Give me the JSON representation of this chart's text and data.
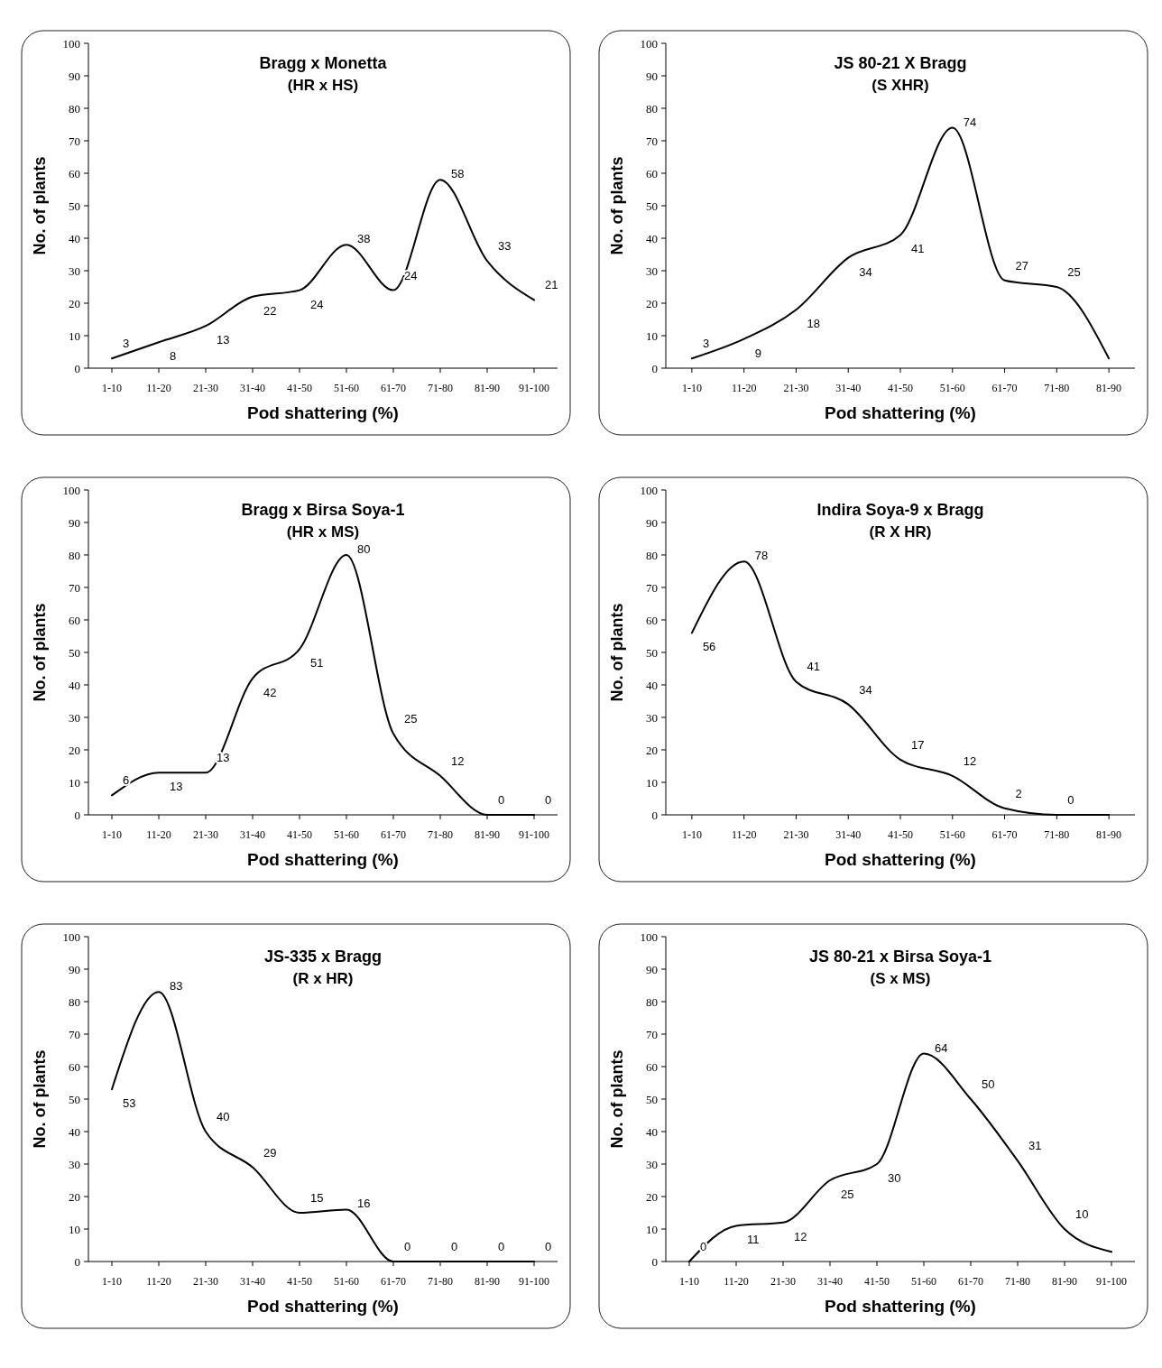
{
  "chart_data": [
    {
      "type": "line",
      "title": "Bragg x Monetta",
      "subtitle": "(HR x HS)",
      "xlabel": "Pod shattering (%)",
      "ylabel": "No. of plants",
      "categories": [
        "1-10",
        "11-20",
        "21-30",
        "31-40",
        "41-50",
        "51-60",
        "61-70",
        "71-80",
        "81-90",
        "91-100"
      ],
      "series": [
        {
          "color": "#000000",
          "values": [
            3,
            8,
            13,
            22,
            24,
            38,
            24,
            58,
            33,
            21
          ],
          "value_labels": [
            "3",
            "8",
            "13",
            "22",
            "24",
            "38",
            "24",
            "58",
            "33",
            "21"
          ]
        }
      ],
      "ylim": [
        0,
        100
      ],
      "yticks": [
        0,
        10,
        20,
        30,
        40,
        50,
        60,
        70,
        80,
        90,
        100
      ],
      "grid": false,
      "marker": "none",
      "line_style": "solid"
    },
    {
      "type": "line",
      "title": "JS 80-21 X Bragg",
      "subtitle": "(S XHR)",
      "xlabel": "Pod shattering (%)",
      "ylabel": "No. of plants",
      "categories": [
        "1-10",
        "11-20",
        "21-30",
        "31-40",
        "41-50",
        "51-60",
        "61-70",
        "71-80",
        "81-90"
      ],
      "series": [
        {
          "color": "#000000",
          "values": [
            3,
            9,
            18,
            34,
            41,
            74,
            27,
            25,
            3
          ],
          "value_labels": [
            "3",
            "9",
            "18",
            "34",
            "41",
            "74",
            "27",
            "25",
            null
          ]
        }
      ],
      "ylim": [
        0,
        100
      ],
      "yticks": [
        0,
        10,
        20,
        30,
        40,
        50,
        60,
        70,
        80,
        90,
        100
      ],
      "grid": false,
      "marker": "none",
      "line_style": "solid"
    },
    {
      "type": "line",
      "title": "Bragg x Birsa Soya-1",
      "subtitle": "(HR x MS)",
      "xlabel": "Pod shattering (%)",
      "ylabel": "No. of plants",
      "categories": [
        "1-10",
        "11-20",
        "21-30",
        "31-40",
        "41-50",
        "51-60",
        "61-70",
        "71-80",
        "81-90",
        "91-100"
      ],
      "series": [
        {
          "color": "#000000",
          "values": [
            6,
            13,
            13,
            42,
            51,
            80,
            25,
            12,
            0,
            0
          ],
          "value_labels": [
            "6",
            "13",
            "13",
            "42",
            "51",
            "80",
            "25",
            "12",
            "0",
            "0"
          ]
        }
      ],
      "ylim": [
        0,
        100
      ],
      "yticks": [
        0,
        10,
        20,
        30,
        40,
        50,
        60,
        70,
        80,
        90,
        100
      ],
      "grid": false,
      "marker": "none",
      "line_style": "solid"
    },
    {
      "type": "line",
      "title": "Indira Soya-9 x Bragg",
      "subtitle": "(R X HR)",
      "xlabel": "Pod shattering (%)",
      "ylabel": "No. of plants",
      "categories": [
        "1-10",
        "11-20",
        "21-30",
        "31-40",
        "41-50",
        "51-60",
        "61-70",
        "71-80",
        "81-90"
      ],
      "series": [
        {
          "color": "#000000",
          "values": [
            56,
            78,
            41,
            34,
            17,
            12,
            2,
            0,
            0
          ],
          "value_labels": [
            "56",
            "78",
            "41",
            "34",
            "17",
            "12",
            "2",
            "0",
            null
          ]
        }
      ],
      "ylim": [
        0,
        100
      ],
      "yticks": [
        0,
        10,
        20,
        30,
        40,
        50,
        60,
        70,
        80,
        90,
        100
      ],
      "grid": false,
      "marker": "none",
      "line_style": "solid"
    },
    {
      "type": "line",
      "title": "JS-335 x Bragg",
      "subtitle": "(R x HR)",
      "xlabel": "Pod shattering (%)",
      "ylabel": "No. of plants",
      "categories": [
        "1-10",
        "11-20",
        "21-30",
        "31-40",
        "41-50",
        "51-60",
        "61-70",
        "71-80",
        "81-90",
        "91-100"
      ],
      "series": [
        {
          "color": "#000000",
          "values": [
            53,
            83,
            40,
            29,
            15,
            16,
            0,
            0,
            0,
            0
          ],
          "value_labels": [
            "53",
            "83",
            "40",
            "29",
            "15",
            "16",
            "0",
            "0",
            "0",
            "0"
          ]
        }
      ],
      "ylim": [
        0,
        100
      ],
      "yticks": [
        0,
        10,
        20,
        30,
        40,
        50,
        60,
        70,
        80,
        90,
        100
      ],
      "grid": false,
      "marker": "none",
      "line_style": "solid"
    },
    {
      "type": "line",
      "title": "JS 80-21 x Birsa Soya-1",
      "subtitle": "(S x MS)",
      "xlabel": "Pod shattering (%)",
      "ylabel": "No. of plants",
      "categories": [
        "1-10",
        "11-20",
        "21-30",
        "31-40",
        "41-50",
        "51-60",
        "61-70",
        "71-80",
        "81-90",
        "91-100"
      ],
      "series": [
        {
          "color": "#000000",
          "values": [
            0,
            11,
            12,
            25,
            30,
            64,
            50,
            31,
            10,
            3
          ],
          "value_labels": [
            "0",
            "11",
            "12",
            "25",
            "30",
            "64",
            "50",
            "31",
            "10",
            null
          ]
        }
      ],
      "ylim": [
        0,
        100
      ],
      "yticks": [
        0,
        10,
        20,
        30,
        40,
        50,
        60,
        70,
        80,
        90,
        100
      ],
      "grid": false,
      "marker": "none",
      "line_style": "solid"
    }
  ]
}
